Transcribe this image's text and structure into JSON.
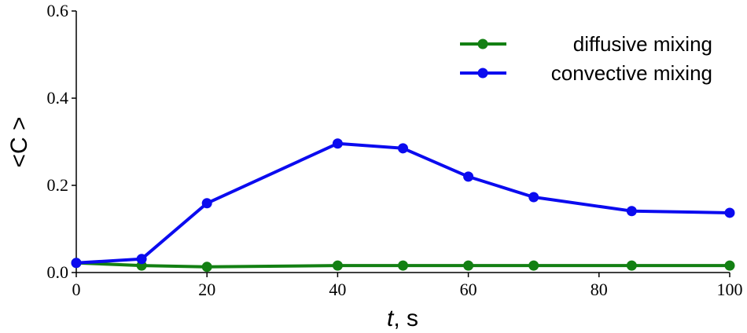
{
  "chart_data": {
    "type": "line",
    "xlabel": {
      "italic": "t",
      "rest": ", s"
    },
    "ylabel": "<C >",
    "xlim": [
      0,
      100
    ],
    "ylim": [
      0,
      0.6
    ],
    "xticks": [
      "0",
      "20",
      "40",
      "60",
      "80",
      "100"
    ],
    "yticks": [
      "0.0",
      "0.2",
      "0.4",
      "0.6"
    ],
    "xtick_values": [
      0,
      20,
      40,
      60,
      80,
      100
    ],
    "ytick_values": [
      0,
      0.2,
      0.4,
      0.6
    ],
    "grid": false,
    "legend_position": "top-right",
    "series": [
      {
        "name": "diffusive mixing",
        "color": "#138013",
        "x": [
          0,
          10,
          20,
          40,
          50,
          60,
          70,
          85,
          100
        ],
        "y": [
          0.022,
          0.016,
          0.013,
          0.016,
          0.016,
          0.016,
          0.016,
          0.016,
          0.016
        ]
      },
      {
        "name": "convective mixing",
        "color": "#0b0bef",
        "x": [
          0,
          10,
          20,
          40,
          50,
          60,
          70,
          85,
          100
        ],
        "y": [
          0.022,
          0.031,
          0.159,
          0.296,
          0.285,
          0.22,
          0.173,
          0.141,
          0.137
        ]
      }
    ]
  }
}
